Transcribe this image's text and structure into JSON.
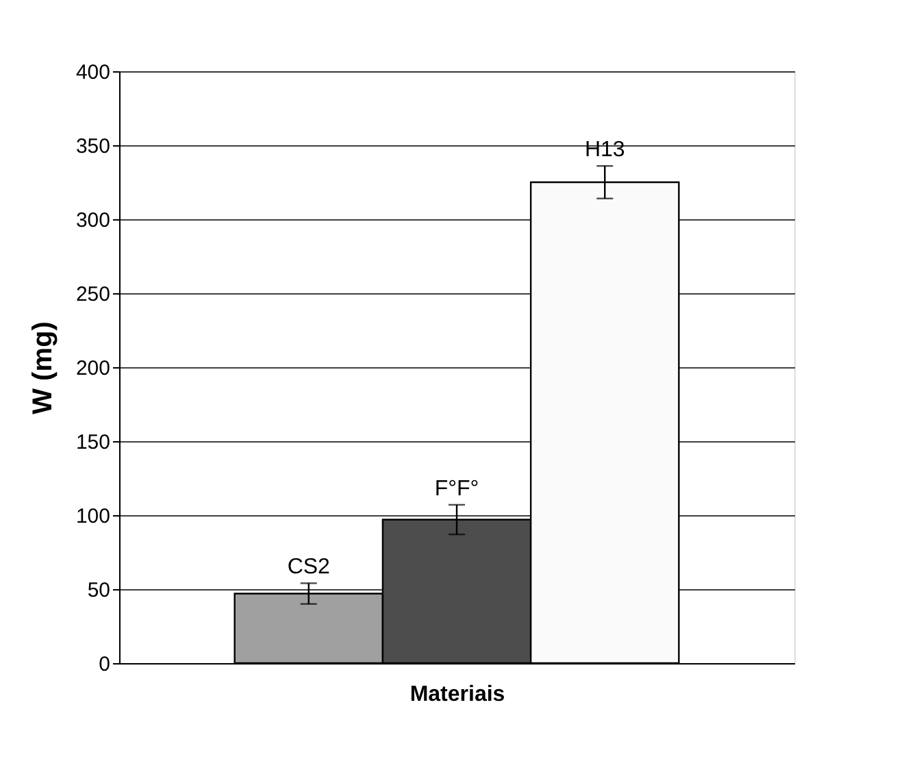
{
  "chart_data": {
    "type": "bar",
    "xlabel": "Materiais",
    "ylabel": "W (mg)",
    "categories": [
      "CS2",
      "F°F°",
      "H13"
    ],
    "values": [
      47,
      97,
      325
    ],
    "errors": [
      7,
      10,
      11
    ],
    "colors": [
      "#a0a0a0",
      "#4d4d4d",
      "#fafafa"
    ],
    "ylim": [
      0,
      400
    ],
    "yticks": [
      0,
      50,
      100,
      150,
      200,
      250,
      300,
      350,
      400
    ],
    "grid": "y",
    "tick_labels": "y"
  }
}
